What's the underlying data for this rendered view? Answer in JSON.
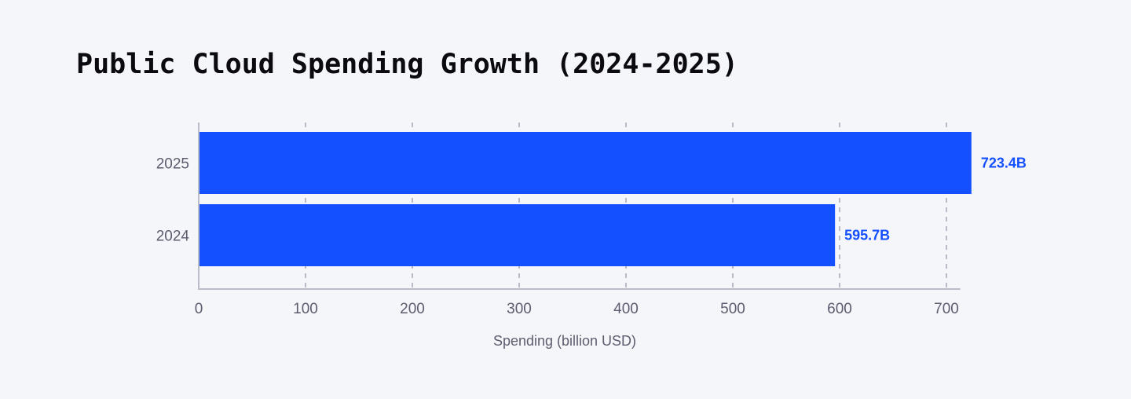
{
  "chart_data": {
    "type": "bar",
    "orientation": "horizontal",
    "title": "Public Cloud Spending Growth (2024-2025)",
    "xlabel": "Spending (billion USD)",
    "ylabel": "",
    "categories": [
      "2025",
      "2024"
    ],
    "values": [
      723.4,
      595.7
    ],
    "data_labels": [
      "723.4B",
      "595.7B"
    ],
    "xlim": [
      0,
      713
    ],
    "xticks": [
      0,
      100,
      200,
      300,
      400,
      500,
      600,
      700
    ],
    "grid": "vertical dashed",
    "bar_color": "#1450ff",
    "label_color": "#1450ff"
  }
}
